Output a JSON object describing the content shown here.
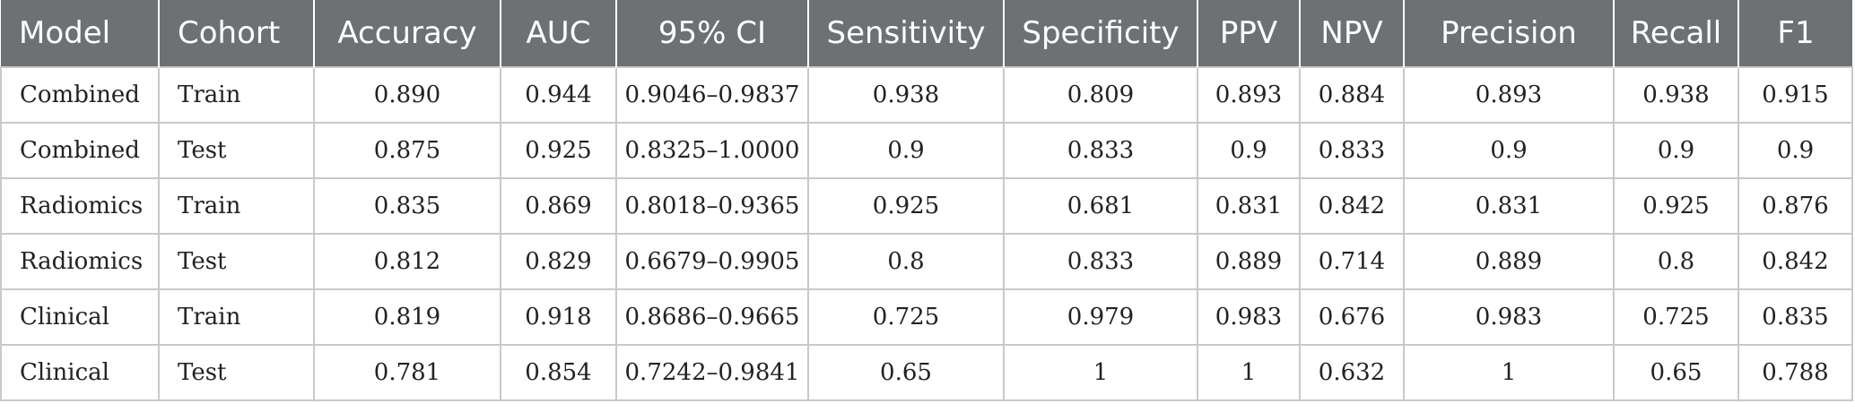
{
  "table": {
    "columns": [
      "Model",
      "Cohort",
      "Accuracy",
      "AUC",
      "95% CI",
      "Sensitivity",
      "Specificity",
      "PPV",
      "NPV",
      "Precision",
      "Recall",
      "F1"
    ],
    "rows": [
      [
        "Combined",
        "Train",
        "0.890",
        "0.944",
        "0.9046–0.9837",
        "0.938",
        "0.809",
        "0.893",
        "0.884",
        "0.893",
        "0.938",
        "0.915"
      ],
      [
        "Combined",
        "Test",
        "0.875",
        "0.925",
        "0.8325–1.0000",
        "0.9",
        "0.833",
        "0.9",
        "0.833",
        "0.9",
        "0.9",
        "0.9"
      ],
      [
        "Radiomics",
        "Train",
        "0.835",
        "0.869",
        "0.8018–0.9365",
        "0.925",
        "0.681",
        "0.831",
        "0.842",
        "0.831",
        "0.925",
        "0.876"
      ],
      [
        "Radiomics",
        "Test",
        "0.812",
        "0.829",
        "0.6679–0.9905",
        "0.8",
        "0.833",
        "0.889",
        "0.714",
        "0.889",
        "0.8",
        "0.842"
      ],
      [
        "Clinical",
        "Train",
        "0.819",
        "0.918",
        "0.8686–0.9665",
        "0.725",
        "0.979",
        "0.983",
        "0.676",
        "0.983",
        "0.725",
        "0.835"
      ],
      [
        "Clinical",
        "Test",
        "0.781",
        "0.854",
        "0.7242–0.9841",
        "0.65",
        "1",
        "1",
        "0.632",
        "1",
        "0.65",
        "0.788"
      ]
    ]
  }
}
